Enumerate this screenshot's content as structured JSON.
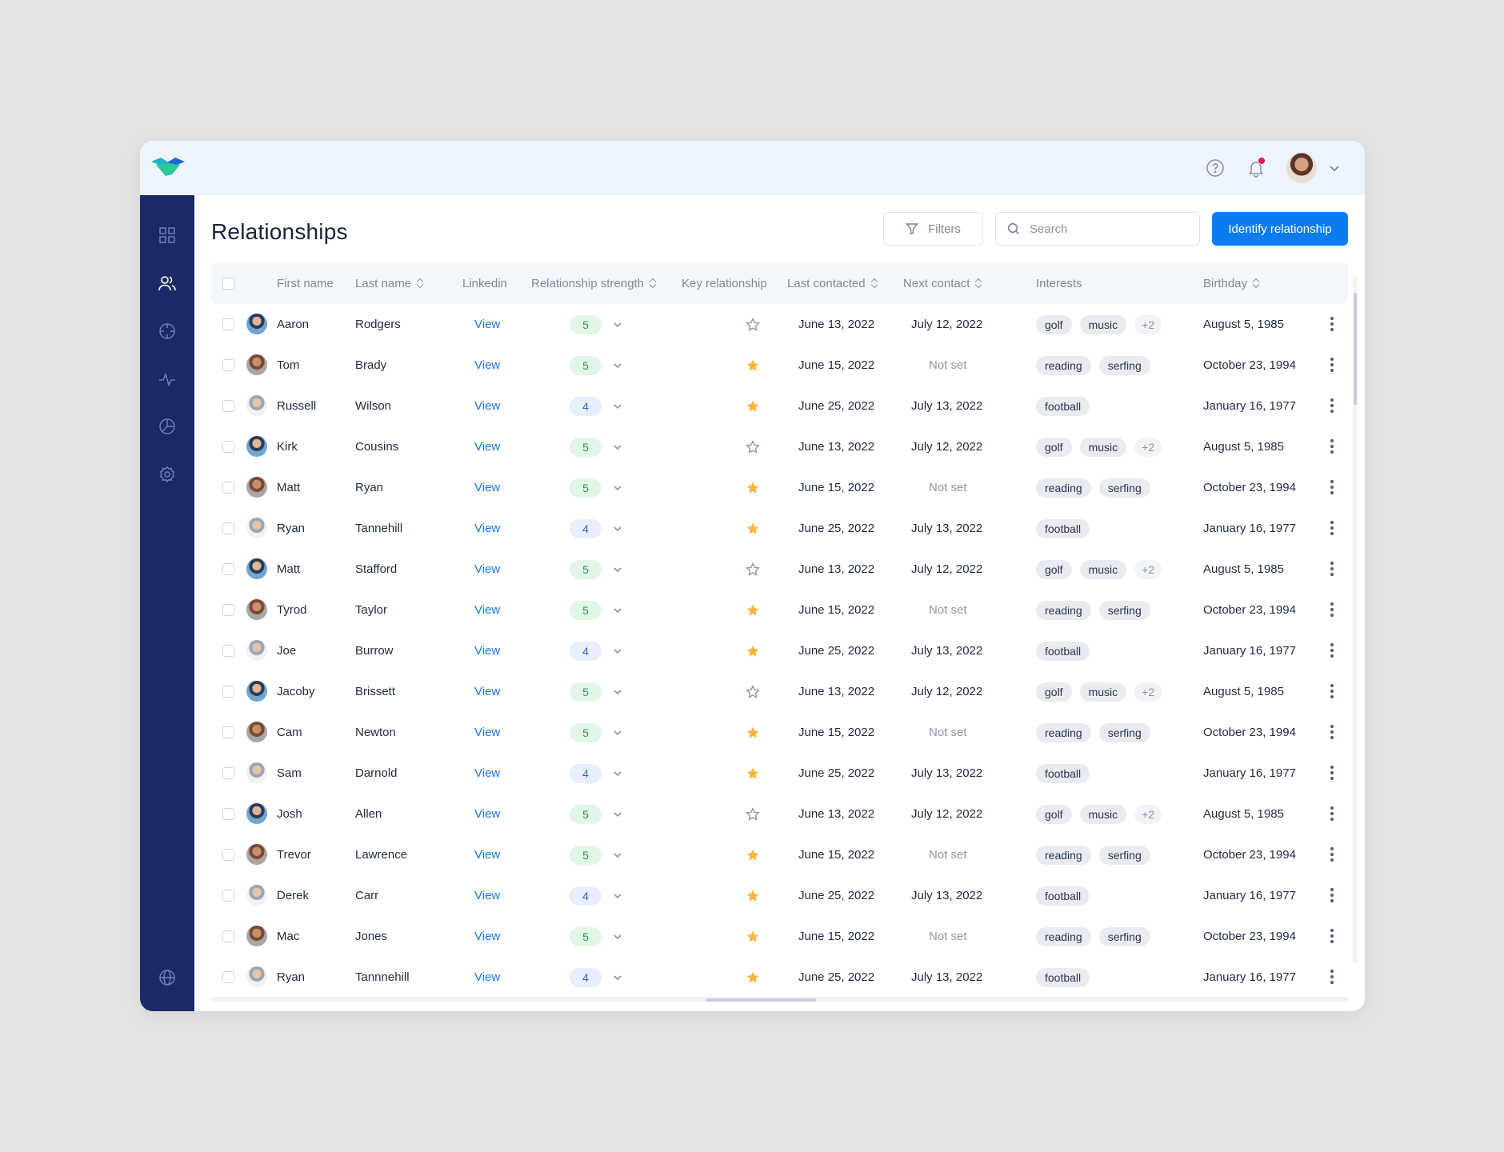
{
  "header": {
    "logo_icon": "handshake-logo-icon",
    "help_icon": "help-circle-icon",
    "notification_icon": "bell-icon",
    "user_menu_icon": "chevron-down-icon",
    "accent_color": "#0a7cf0",
    "notification_dot_color": "#f0114f"
  },
  "sidebar": {
    "background": "#1b2a67",
    "items": [
      {
        "icon": "dashboard-grid-icon",
        "active": false
      },
      {
        "icon": "users-icon",
        "active": true
      },
      {
        "icon": "target-icon",
        "active": false
      },
      {
        "icon": "activity-icon",
        "active": false
      },
      {
        "icon": "pie-chart-icon",
        "active": false
      },
      {
        "icon": "settings-gear-icon",
        "active": false
      }
    ],
    "bottom_icon": "globe-icon"
  },
  "page": {
    "title": "Relationships",
    "filters_label": "Filters",
    "search_placeholder": "Search",
    "search_value": "",
    "primary_button_label": "Identify relationship"
  },
  "table": {
    "columns": {
      "first_name": "First name",
      "last_name": "Last name",
      "linkedin": "Linkedin",
      "strength": "Relationship strength",
      "key": "Key relationship",
      "last_contacted": "Last contacted",
      "next_contact": "Next contact",
      "interests": "Interests",
      "birthday": "Birthday"
    },
    "rows": [
      {
        "first": "Aaron",
        "last": "Rodgers",
        "linkedin": "View",
        "strength": "5",
        "key": false,
        "last_contacted": "June 13, 2022",
        "next_contact": "July 12, 2022",
        "interests": [
          "golf",
          "music",
          "+2"
        ],
        "birthday": "August 5, 1985",
        "avatar": "a"
      },
      {
        "first": "Tom",
        "last": "Brady",
        "linkedin": "View",
        "strength": "5",
        "key": true,
        "last_contacted": "June 15, 2022",
        "next_contact": "Not set",
        "interests": [
          "reading",
          "serfing"
        ],
        "birthday": "October 23, 1994",
        "avatar": "b"
      },
      {
        "first": "Russell",
        "last": "Wilson",
        "linkedin": "View",
        "strength": "4",
        "key": true,
        "last_contacted": "June 25, 2022",
        "next_contact": "July 13, 2022",
        "interests": [
          "football"
        ],
        "birthday": "January 16, 1977",
        "avatar": "c"
      },
      {
        "first": "Kirk",
        "last": "Cousins",
        "linkedin": "View",
        "strength": "5",
        "key": false,
        "last_contacted": "June 13, 2022",
        "next_contact": "July 12, 2022",
        "interests": [
          "golf",
          "music",
          "+2"
        ],
        "birthday": "August 5, 1985",
        "avatar": "a"
      },
      {
        "first": "Matt",
        "last": "Ryan",
        "linkedin": "View",
        "strength": "5",
        "key": true,
        "last_contacted": "June 15, 2022",
        "next_contact": "Not set",
        "interests": [
          "reading",
          "serfing"
        ],
        "birthday": "October 23, 1994",
        "avatar": "b"
      },
      {
        "first": "Ryan",
        "last": "Tannehill",
        "linkedin": "View",
        "strength": "4",
        "key": true,
        "last_contacted": "June 25, 2022",
        "next_contact": "July 13, 2022",
        "interests": [
          "football"
        ],
        "birthday": "January 16, 1977",
        "avatar": "c"
      },
      {
        "first": "Matt",
        "last": "Stafford",
        "linkedin": "View",
        "strength": "5",
        "key": false,
        "last_contacted": "June 13, 2022",
        "next_contact": "July 12, 2022",
        "interests": [
          "golf",
          "music",
          "+2"
        ],
        "birthday": "August 5, 1985",
        "avatar": "a"
      },
      {
        "first": "Tyrod",
        "last": "Taylor",
        "linkedin": "View",
        "strength": "5",
        "key": true,
        "last_contacted": "June 15, 2022",
        "next_contact": "Not set",
        "interests": [
          "reading",
          "serfing"
        ],
        "birthday": "October 23, 1994",
        "avatar": "b"
      },
      {
        "first": "Joe",
        "last": "Burrow",
        "linkedin": "View",
        "strength": "4",
        "key": true,
        "last_contacted": "June 25, 2022",
        "next_contact": "July 13, 2022",
        "interests": [
          "football"
        ],
        "birthday": "January 16, 1977",
        "avatar": "c"
      },
      {
        "first": "Jacoby",
        "last": "Brissett",
        "linkedin": "View",
        "strength": "5",
        "key": false,
        "last_contacted": "June 13, 2022",
        "next_contact": "July 12, 2022",
        "interests": [
          "golf",
          "music",
          "+2"
        ],
        "birthday": "August 5, 1985",
        "avatar": "a"
      },
      {
        "first": "Cam",
        "last": "Newton",
        "linkedin": "View",
        "strength": "5",
        "key": true,
        "last_contacted": "June 15, 2022",
        "next_contact": "Not set",
        "interests": [
          "reading",
          "serfing"
        ],
        "birthday": "October 23, 1994",
        "avatar": "b"
      },
      {
        "first": "Sam",
        "last": "Darnold",
        "linkedin": "View",
        "strength": "4",
        "key": true,
        "last_contacted": "June 25, 2022",
        "next_contact": "July 13, 2022",
        "interests": [
          "football"
        ],
        "birthday": "January 16, 1977",
        "avatar": "c"
      },
      {
        "first": "Josh",
        "last": "Allen",
        "linkedin": "View",
        "strength": "5",
        "key": false,
        "last_contacted": "June 13, 2022",
        "next_contact": "July 12, 2022",
        "interests": [
          "golf",
          "music",
          "+2"
        ],
        "birthday": "August 5, 1985",
        "avatar": "a"
      },
      {
        "first": "Trevor",
        "last": "Lawrence",
        "linkedin": "View",
        "strength": "5",
        "key": true,
        "last_contacted": "June 15, 2022",
        "next_contact": "Not set",
        "interests": [
          "reading",
          "serfing"
        ],
        "birthday": "October 23, 1994",
        "avatar": "b"
      },
      {
        "first": "Derek",
        "last": "Carr",
        "linkedin": "View",
        "strength": "4",
        "key": true,
        "last_contacted": "June 25, 2022",
        "next_contact": "July 13, 2022",
        "interests": [
          "football"
        ],
        "birthday": "January 16, 1977",
        "avatar": "c"
      },
      {
        "first": "Mac",
        "last": "Jones",
        "linkedin": "View",
        "strength": "5",
        "key": true,
        "last_contacted": "June 15, 2022",
        "next_contact": "Not set",
        "interests": [
          "reading",
          "serfing"
        ],
        "birthday": "October 23, 1994",
        "avatar": "b"
      },
      {
        "first": "Ryan",
        "last": "Tannnehill",
        "linkedin": "View",
        "strength": "4",
        "key": true,
        "last_contacted": "June 25, 2022",
        "next_contact": "July 13, 2022",
        "interests": [
          "football"
        ],
        "birthday": "January 16, 1977",
        "avatar": "c"
      }
    ]
  }
}
